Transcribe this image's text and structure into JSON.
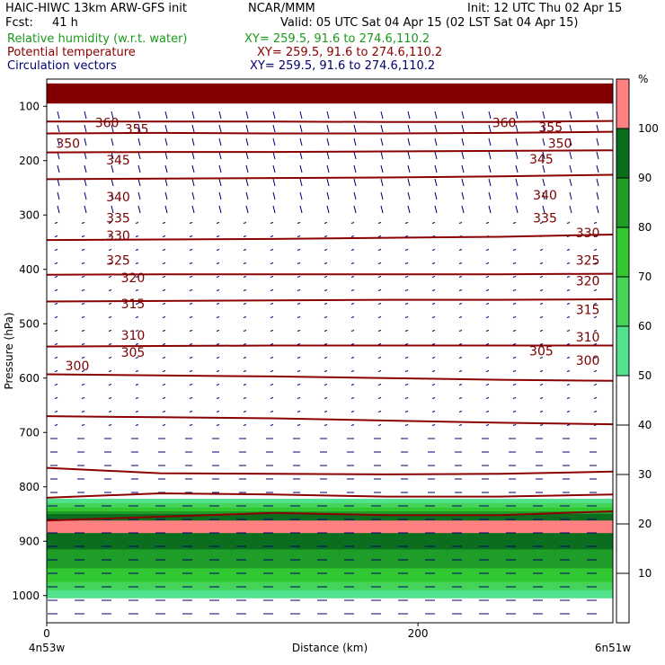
{
  "header": {
    "title": "HAIC-HIWC 13km ARW-GFS init",
    "org": "NCAR/MMM",
    "init": "Init: 12 UTC Thu 02 Apr 15",
    "fcst_label": "Fcst:",
    "fcst_value": "41 h",
    "valid": "Valid: 05 UTC Sat 04 Apr 15 (02 LST Sat 04 Apr 15)",
    "field1": "Relative humidity (w.r.t. water)",
    "field1_xy": "XY= 259.5, 91.6 to 274.6,110.2",
    "field2": "Potential temperature",
    "field2_xy": "XY= 259.5, 91.6 to 274.6,110.2",
    "field3": "Circulation vectors",
    "field3_xy": "XY= 259.5, 91.6 to 274.6,110.2"
  },
  "colors": {
    "rh_green": "#1a9a1a",
    "theta_red": "#8b0000",
    "vector_blue": "#00006e",
    "scale": [
      "#ffffff",
      "#ffffff",
      "#ffffff",
      "#ffffff",
      "#ffffff",
      "#50e28c",
      "#46d35a",
      "#32c832",
      "#1e9e28",
      "#0a6e1e",
      "#ff8080",
      "#820000"
    ]
  },
  "chart_data": {
    "type": "cross-section",
    "ylabel": "Pressure (hPa)",
    "xlabel": "Distance (km)",
    "x_ticks": [
      "0",
      "200"
    ],
    "x_end_labels": [
      "4n53w",
      "6n51w"
    ],
    "y_ticks": [
      "100",
      "200",
      "300",
      "400",
      "500",
      "600",
      "700",
      "800",
      "900",
      "1000"
    ],
    "xlim": [
      0,
      305
    ],
    "ylim_hPa": [
      50,
      1050
    ],
    "colorbar_unit": "%",
    "colorbar_ticks": [
      "10",
      "20",
      "30",
      "40",
      "50",
      "60",
      "70",
      "80",
      "90",
      "100"
    ],
    "colorbar_range": [
      0,
      110
    ],
    "theta_contours": [
      {
        "value": 360,
        "label": "360",
        "p": [
          128,
          128,
          128,
          129,
          129,
          127
        ],
        "labels_at": [
          [
            26,
            132
          ],
          [
            240,
            132
          ]
        ]
      },
      {
        "value": 355,
        "label": "355",
        "p": [
          150,
          149,
          150,
          150,
          149,
          147
        ],
        "labels_at": [
          [
            42,
            143
          ],
          [
            265,
            140
          ]
        ]
      },
      {
        "value": 350,
        "label": "350",
        "p": [
          185,
          184,
          184,
          183,
          182,
          181
        ],
        "labels_at": [
          [
            5,
            170
          ],
          [
            270,
            170
          ]
        ]
      },
      {
        "value": 345,
        "label": "345",
        "p": [
          234,
          233,
          232,
          231,
          229,
          226
        ],
        "labels_at": [
          [
            32,
            200
          ],
          [
            260,
            199
          ]
        ]
      },
      {
        "value": 340,
        "label": "340",
        "p": [
          346,
          345,
          344,
          342,
          340,
          336
        ],
        "labels_at": [
          [
            32,
            268
          ],
          [
            262,
            265
          ]
        ]
      },
      {
        "value": 335,
        "label": "335",
        "p": [
          410,
          409,
          409,
          409,
          409,
          408
        ],
        "labels_at": [
          [
            32,
            307
          ],
          [
            262,
            307
          ]
        ]
      },
      {
        "value": 330,
        "label": "330",
        "p": [
          459,
          458,
          457,
          456,
          456,
          455
        ],
        "labels_at": [
          [
            32,
            339
          ],
          [
            285,
            334
          ]
        ]
      },
      {
        "value": 325,
        "label": "325",
        "p": [
          542,
          541,
          540,
          540,
          540,
          540
        ],
        "labels_at": [
          [
            32,
            385
          ],
          [
            285,
            385
          ]
        ]
      },
      {
        "value": 320,
        "label": "320",
        "p": [
          593,
          595,
          597,
          600,
          603,
          605
        ],
        "labels_at": [
          [
            40,
            417
          ],
          [
            285,
            423
          ]
        ]
      },
      {
        "value": 315,
        "label": "315",
        "p": [
          670,
          672,
          674,
          678,
          682,
          685
        ],
        "labels_at": [
          [
            40,
            465
          ],
          [
            285,
            476
          ]
        ]
      },
      {
        "value": 310,
        "label": "310",
        "p": [
          765,
          775,
          776,
          777,
          776,
          772
        ],
        "labels_at": [
          [
            40,
            523
          ],
          [
            285,
            526
          ]
        ]
      },
      {
        "value": 305,
        "label": "305",
        "p": [
          820,
          812,
          814,
          818,
          818,
          814
        ],
        "labels_at": [
          [
            40,
            554
          ],
          [
            260,
            552
          ]
        ]
      },
      {
        "value": 300,
        "label": "300",
        "p": [
          862,
          855,
          848,
          852,
          852,
          845
        ],
        "labels_at": [
          [
            10,
            579
          ],
          [
            285,
            569
          ]
        ]
      }
    ],
    "rh_layers": [
      {
        "rh": 50,
        "p_top": 822,
        "p_bottom": 1005
      },
      {
        "rh": 60,
        "p_top": 830,
        "p_bottom": 990
      },
      {
        "rh": 70,
        "p_top": 838,
        "p_bottom": 975
      },
      {
        "rh": 80,
        "p_top": 845,
        "p_bottom": 950
      },
      {
        "rh": 90,
        "p_top": 850,
        "p_bottom": 915
      },
      {
        "rh": 100,
        "p_top": 862,
        "p_bottom": 885
      },
      {
        "rh": 100,
        "p_top": 58,
        "p_bottom": 95
      }
    ]
  }
}
